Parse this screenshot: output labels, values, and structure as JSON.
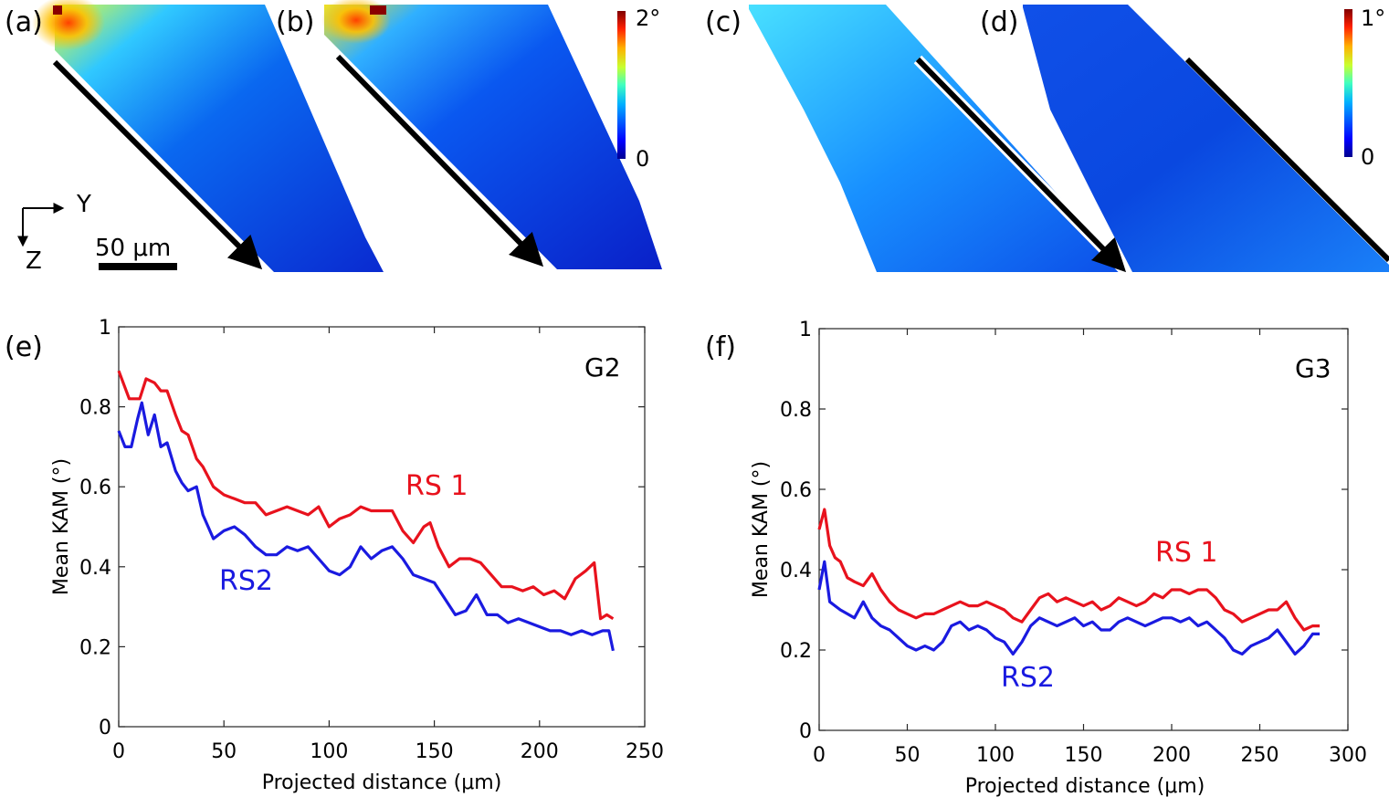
{
  "maps": {
    "panels": [
      {
        "label": "(a)"
      },
      {
        "label": "(b)"
      },
      {
        "label": "(c)"
      },
      {
        "label": "(d)"
      }
    ],
    "colorbar_left": {
      "max_label": "2°",
      "min_label": "0"
    },
    "colorbar_right": {
      "max_label": "1°",
      "min_label": "0"
    },
    "axes_indicator": {
      "y_label": "Y",
      "z_label": "Z"
    },
    "scale_bar": {
      "label": "50 μm"
    },
    "colormap": [
      "#00008f",
      "#0030ff",
      "#00a0ff",
      "#40ffc0",
      "#c0ff40",
      "#ffb000",
      "#ff2000",
      "#800000"
    ]
  },
  "chart_data": [
    {
      "type": "line",
      "panel_label": "(e)",
      "grain_label": "G2",
      "xlabel": "Projected distance (μm)",
      "ylabel": "Mean KAM (°)",
      "xlim": [
        0,
        250
      ],
      "ylim": [
        0,
        1
      ],
      "xticks": [
        "0",
        "50",
        "100",
        "150",
        "200",
        "250"
      ],
      "yticks": [
        "0",
        "0.2",
        "0.4",
        "0.6",
        "0.8",
        "1"
      ],
      "series": [
        {
          "name": "RS 1",
          "color": "#e8121d",
          "x": [
            0,
            5,
            10,
            13,
            17,
            20,
            23,
            27,
            30,
            33,
            37,
            40,
            45,
            50,
            55,
            60,
            65,
            70,
            75,
            80,
            85,
            90,
            95,
            100,
            105,
            110,
            115,
            120,
            125,
            130,
            135,
            140,
            145,
            148,
            152,
            157,
            162,
            167,
            172,
            177,
            182,
            187,
            192,
            197,
            202,
            207,
            212,
            217,
            222,
            226,
            229,
            232,
            235
          ],
          "y": [
            0.89,
            0.82,
            0.82,
            0.87,
            0.86,
            0.84,
            0.84,
            0.78,
            0.74,
            0.73,
            0.67,
            0.65,
            0.6,
            0.58,
            0.57,
            0.56,
            0.56,
            0.53,
            0.54,
            0.55,
            0.54,
            0.53,
            0.55,
            0.5,
            0.52,
            0.53,
            0.55,
            0.54,
            0.54,
            0.54,
            0.49,
            0.46,
            0.5,
            0.51,
            0.45,
            0.4,
            0.42,
            0.42,
            0.41,
            0.38,
            0.35,
            0.35,
            0.34,
            0.35,
            0.33,
            0.34,
            0.32,
            0.37,
            0.39,
            0.41,
            0.27,
            0.28,
            0.27
          ]
        },
        {
          "name": "RS2",
          "color": "#1a1ae0",
          "x": [
            0,
            3,
            6,
            9,
            11,
            14,
            17,
            20,
            23,
            27,
            30,
            33,
            37,
            40,
            45,
            50,
            55,
            60,
            65,
            70,
            75,
            80,
            85,
            90,
            95,
            100,
            105,
            110,
            115,
            120,
            125,
            130,
            135,
            140,
            145,
            150,
            155,
            160,
            165,
            170,
            175,
            180,
            185,
            190,
            195,
            200,
            205,
            210,
            215,
            220,
            225,
            230,
            233,
            235
          ],
          "y": [
            0.74,
            0.7,
            0.7,
            0.77,
            0.81,
            0.73,
            0.78,
            0.7,
            0.71,
            0.64,
            0.61,
            0.59,
            0.6,
            0.53,
            0.47,
            0.49,
            0.5,
            0.48,
            0.45,
            0.43,
            0.43,
            0.45,
            0.44,
            0.45,
            0.42,
            0.39,
            0.38,
            0.4,
            0.45,
            0.42,
            0.44,
            0.45,
            0.42,
            0.38,
            0.37,
            0.36,
            0.32,
            0.28,
            0.29,
            0.33,
            0.28,
            0.28,
            0.26,
            0.27,
            0.26,
            0.25,
            0.24,
            0.24,
            0.23,
            0.24,
            0.23,
            0.24,
            0.24,
            0.19
          ]
        }
      ]
    },
    {
      "type": "line",
      "panel_label": "(f)",
      "grain_label": "G3",
      "xlabel": "Projected distance (μm)",
      "ylabel": "Mean KAM (°)",
      "xlim": [
        0,
        300
      ],
      "ylim": [
        0,
        1
      ],
      "xticks": [
        "0",
        "50",
        "100",
        "150",
        "200",
        "250",
        "300"
      ],
      "yticks": [
        "0",
        "0.2",
        "0.4",
        "0.6",
        "0.8",
        "1"
      ],
      "series": [
        {
          "name": "RS 1",
          "color": "#e8121d",
          "x": [
            0,
            3,
            6,
            9,
            12,
            16,
            20,
            25,
            30,
            35,
            40,
            45,
            50,
            55,
            60,
            65,
            70,
            75,
            80,
            85,
            90,
            95,
            100,
            105,
            110,
            115,
            120,
            125,
            130,
            135,
            140,
            145,
            150,
            155,
            160,
            165,
            170,
            175,
            180,
            185,
            190,
            195,
            200,
            205,
            210,
            215,
            220,
            225,
            230,
            235,
            240,
            245,
            250,
            255,
            260,
            265,
            270,
            275,
            280,
            284
          ],
          "y": [
            0.5,
            0.55,
            0.46,
            0.43,
            0.42,
            0.38,
            0.37,
            0.36,
            0.39,
            0.35,
            0.32,
            0.3,
            0.29,
            0.28,
            0.29,
            0.29,
            0.3,
            0.31,
            0.32,
            0.31,
            0.31,
            0.32,
            0.31,
            0.3,
            0.28,
            0.27,
            0.3,
            0.33,
            0.34,
            0.32,
            0.33,
            0.32,
            0.31,
            0.32,
            0.3,
            0.31,
            0.33,
            0.32,
            0.31,
            0.32,
            0.34,
            0.33,
            0.35,
            0.35,
            0.34,
            0.35,
            0.35,
            0.33,
            0.3,
            0.29,
            0.27,
            0.28,
            0.29,
            0.3,
            0.3,
            0.32,
            0.28,
            0.25,
            0.26,
            0.26
          ]
        },
        {
          "name": "RS2",
          "color": "#1a1ae0",
          "x": [
            0,
            3,
            6,
            9,
            12,
            16,
            20,
            25,
            30,
            35,
            40,
            45,
            50,
            55,
            60,
            65,
            70,
            75,
            80,
            85,
            90,
            95,
            100,
            105,
            110,
            115,
            120,
            125,
            130,
            135,
            140,
            145,
            150,
            155,
            160,
            165,
            170,
            175,
            180,
            185,
            190,
            195,
            200,
            205,
            210,
            215,
            220,
            225,
            230,
            235,
            240,
            245,
            250,
            255,
            260,
            265,
            270,
            275,
            280,
            284
          ],
          "y": [
            0.35,
            0.42,
            0.32,
            0.31,
            0.3,
            0.29,
            0.28,
            0.32,
            0.28,
            0.26,
            0.25,
            0.23,
            0.21,
            0.2,
            0.21,
            0.2,
            0.22,
            0.26,
            0.27,
            0.25,
            0.26,
            0.25,
            0.23,
            0.22,
            0.19,
            0.22,
            0.26,
            0.28,
            0.27,
            0.26,
            0.27,
            0.28,
            0.26,
            0.27,
            0.25,
            0.25,
            0.27,
            0.28,
            0.27,
            0.26,
            0.27,
            0.28,
            0.28,
            0.27,
            0.28,
            0.26,
            0.27,
            0.25,
            0.23,
            0.2,
            0.19,
            0.21,
            0.22,
            0.23,
            0.25,
            0.22,
            0.19,
            0.21,
            0.24,
            0.24
          ]
        }
      ]
    }
  ]
}
